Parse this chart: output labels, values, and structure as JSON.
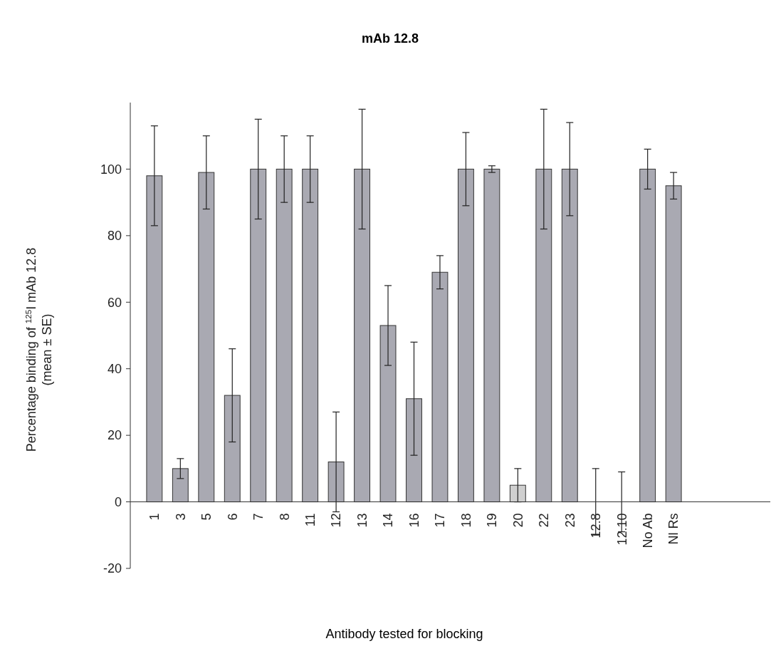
{
  "chart_data": {
    "type": "bar",
    "title": "mAb 12.8",
    "xlabel": "Antibody tested for blocking",
    "ylabel": "Percentage binding of $^{125}$I mAb 12.8\n(mean ± SE)",
    "categories": [
      "1",
      "3",
      "5",
      "6",
      "7",
      "8",
      "11",
      "12",
      "13",
      "14",
      "16",
      "17",
      "18",
      "19",
      "20",
      "22",
      "23",
      "12.8",
      "12.10",
      "No Ab",
      "Nl Rs"
    ],
    "values": [
      98,
      10,
      99,
      32,
      100,
      100,
      100,
      12,
      100,
      53,
      31,
      69,
      100,
      100,
      5,
      100,
      100,
      0,
      0,
      100,
      95
    ],
    "errors": [
      [
        83,
        113
      ],
      [
        7,
        13
      ],
      [
        88,
        110
      ],
      [
        18,
        46
      ],
      [
        85,
        115
      ],
      [
        90,
        110
      ],
      [
        90,
        110
      ],
      [
        -3,
        27
      ],
      [
        82,
        118
      ],
      [
        41,
        65
      ],
      [
        14,
        48
      ],
      [
        64,
        74
      ],
      [
        89,
        111
      ],
      [
        99,
        101
      ],
      [
        0,
        10
      ],
      [
        82,
        118
      ],
      [
        86,
        114
      ],
      [
        -10,
        10
      ],
      [
        -9,
        9
      ],
      [
        94,
        106
      ],
      [
        91,
        99
      ]
    ],
    "colors": [
      "#a9a9b2",
      "#a9a9b2",
      "#a9a9b2",
      "#a9a9b2",
      "#a9a9b2",
      "#a9a9b2",
      "#a9a9b2",
      "#a9a9b2",
      "#a9a9b2",
      "#a9a9b2",
      "#a9a9b2",
      "#a9a9b2",
      "#a9a9b2",
      "#a9a9b2",
      "#cfcfcf",
      "#a9a9b2",
      "#a9a9b2",
      "#a9a9b2",
      "#a9a9b2",
      "#a9a9b2",
      "#a9a9b2"
    ],
    "ylim": [
      -20,
      120
    ],
    "yticks": [
      -20,
      0,
      20,
      40,
      60,
      80,
      100
    ],
    "grid": false
  }
}
